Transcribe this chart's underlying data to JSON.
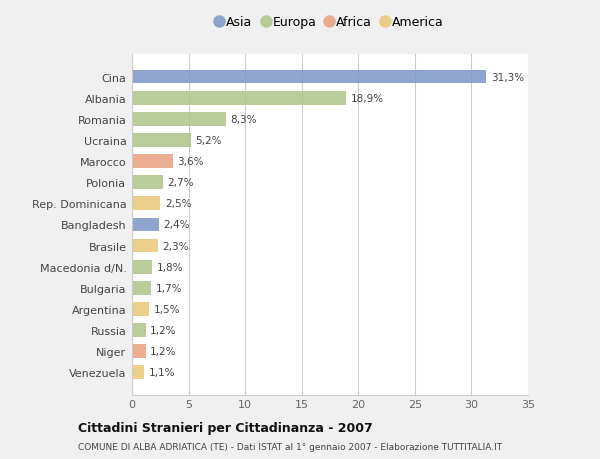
{
  "categories": [
    "Cina",
    "Albania",
    "Romania",
    "Ucraina",
    "Marocco",
    "Polonia",
    "Rep. Dominicana",
    "Bangladesh",
    "Brasile",
    "Macedonia d/N.",
    "Bulgaria",
    "Argentina",
    "Russia",
    "Niger",
    "Venezuela"
  ],
  "values": [
    31.3,
    18.9,
    8.3,
    5.2,
    3.6,
    2.7,
    2.5,
    2.4,
    2.3,
    1.8,
    1.7,
    1.5,
    1.2,
    1.2,
    1.1
  ],
  "labels": [
    "31,3%",
    "18,9%",
    "8,3%",
    "5,2%",
    "3,6%",
    "2,7%",
    "2,5%",
    "2,4%",
    "2,3%",
    "1,8%",
    "1,7%",
    "1,5%",
    "1,2%",
    "1,2%",
    "1,1%"
  ],
  "continents": [
    "Asia",
    "Europa",
    "Europa",
    "Europa",
    "Africa",
    "Europa",
    "America",
    "Asia",
    "America",
    "Europa",
    "Europa",
    "America",
    "Europa",
    "Africa",
    "America"
  ],
  "colors": {
    "Asia": "#7b96c8",
    "Europa": "#aec488",
    "Africa": "#e8a080",
    "America": "#e8c878"
  },
  "legend_order": [
    "Asia",
    "Europa",
    "Africa",
    "America"
  ],
  "xlim": [
    0,
    35
  ],
  "xticks": [
    0,
    5,
    10,
    15,
    20,
    25,
    30,
    35
  ],
  "title": "Cittadini Stranieri per Cittadinanza - 2007",
  "subtitle": "COMUNE DI ALBA ADRIATICA (TE) - Dati ISTAT al 1° gennaio 2007 - Elaborazione TUTTITALIA.IT",
  "background_color": "#f0f0f0",
  "plot_bg_color": "#ffffff",
  "grid_color": "#cccccc",
  "label_fontsize": 7.5,
  "ytick_fontsize": 8,
  "xtick_fontsize": 8
}
